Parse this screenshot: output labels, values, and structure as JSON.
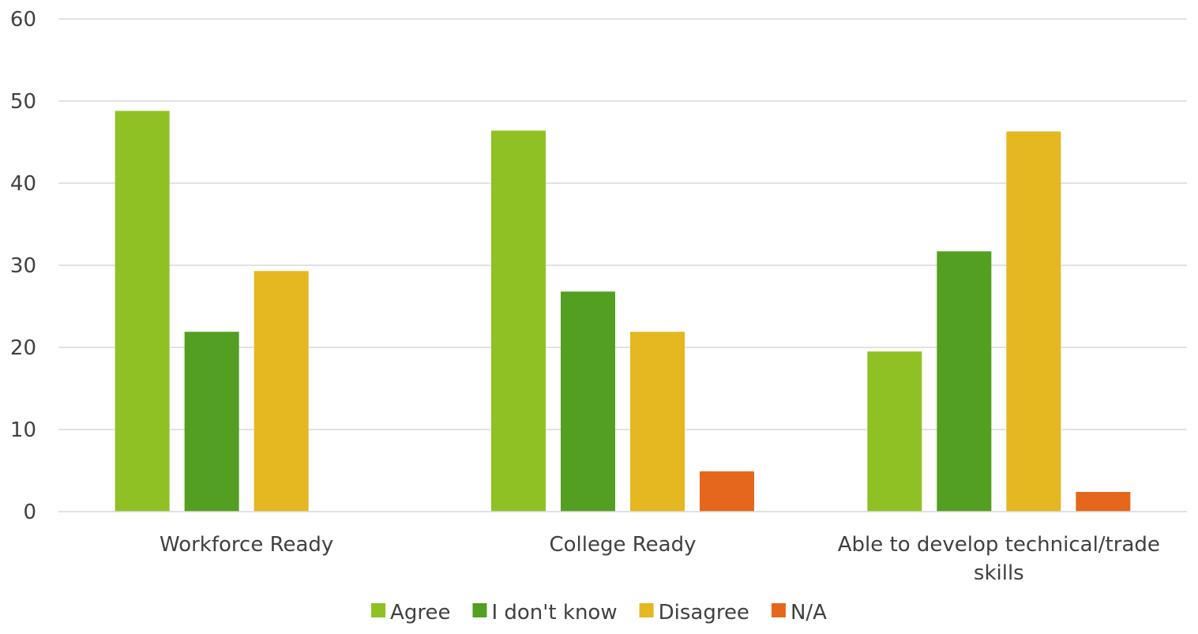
{
  "chart_data": {
    "type": "bar",
    "title": "",
    "xlabel": "",
    "ylabel": "",
    "ylim": [
      0,
      60
    ],
    "yticks": [
      0,
      10,
      20,
      30,
      40,
      50,
      60
    ],
    "grid": true,
    "legend_position": "bottom",
    "categories": [
      [
        "Workforce Ready"
      ],
      [
        "College Ready"
      ],
      [
        "Able to develop technical/trade",
        "skills"
      ]
    ],
    "series": [
      {
        "name": "Agree",
        "color": "#8fc124",
        "values": [
          48.8,
          46.4,
          19.5
        ]
      },
      {
        "name": "I don't know",
        "color": "#529f21",
        "values": [
          21.9,
          26.8,
          31.7
        ]
      },
      {
        "name": "Disagree",
        "color": "#e5b720",
        "values": [
          29.3,
          21.9,
          46.3
        ]
      },
      {
        "name": "N/A",
        "color": "#e5671b",
        "values": [
          0,
          4.9,
          2.4
        ]
      }
    ]
  }
}
